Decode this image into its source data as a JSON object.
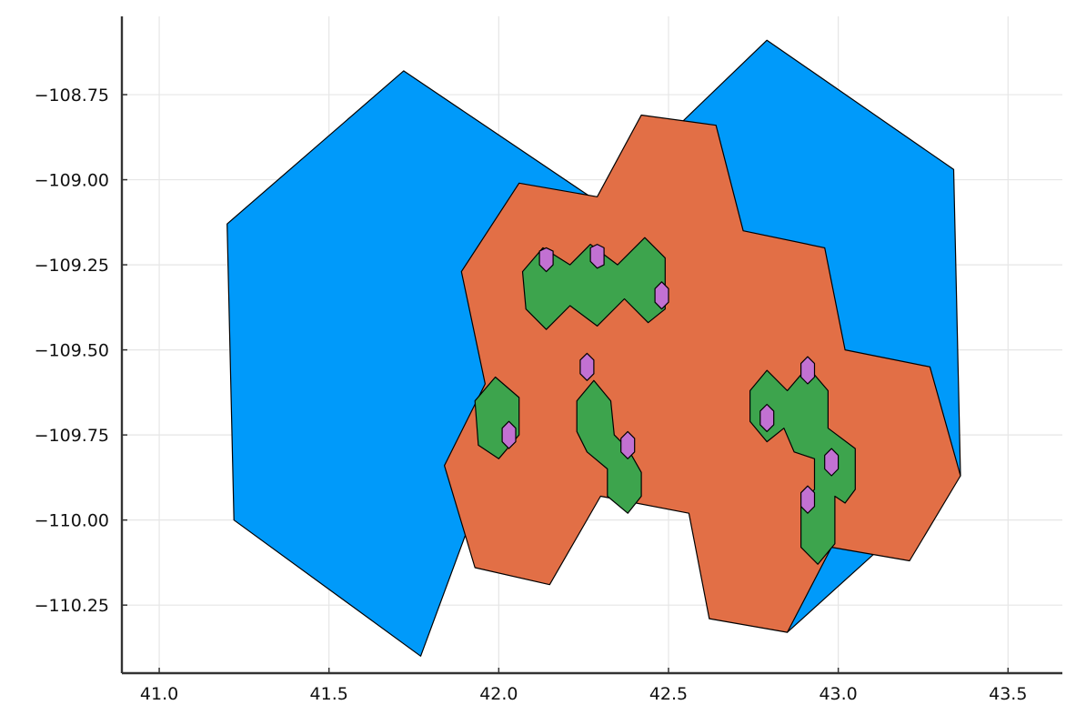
{
  "chart_data": {
    "type": "polygon-map",
    "title": "",
    "xlabel": "",
    "ylabel": "",
    "xlim": [
      40.89,
      43.66
    ],
    "ylim": [
      -110.45,
      -108.52
    ],
    "xticks": [
      41.0,
      41.5,
      42.0,
      42.5,
      43.0,
      43.5
    ],
    "xtick_labels": [
      "41.0",
      "41.5",
      "42.0",
      "42.5",
      "43.0",
      "43.5"
    ],
    "yticks": [
      -108.75,
      -109.0,
      -109.25,
      -109.5,
      -109.75,
      -110.0,
      -110.25
    ],
    "ytick_labels": [
      "−108.75",
      "−109.00",
      "−109.25",
      "−109.50",
      "−109.75",
      "−110.00",
      "−110.25"
    ],
    "grid": true,
    "legend": "none",
    "series": [
      {
        "color": "#009AFA",
        "polygons": [
          [
            [
              41.72,
              -108.68
            ],
            [
              42.27,
              -109.05
            ],
            [
              41.77,
              -110.4
            ],
            [
              41.22,
              -110.0
            ],
            [
              41.2,
              -109.13
            ]
          ],
          [
            [
              42.54,
              -108.83
            ],
            [
              42.79,
              -108.59
            ],
            [
              43.34,
              -108.97
            ],
            [
              43.36,
              -109.87
            ],
            [
              42.85,
              -110.33
            ],
            [
              42.58,
              -109.98
            ],
            [
              42.3,
              -109.91
            ]
          ]
        ]
      },
      {
        "color": "#E26F46",
        "polygons": [
          [
            [
              42.42,
              -108.81
            ],
            [
              42.64,
              -108.84
            ],
            [
              42.72,
              -109.15
            ],
            [
              42.96,
              -109.2
            ],
            [
              43.02,
              -109.5
            ],
            [
              43.27,
              -109.55
            ],
            [
              43.36,
              -109.87
            ],
            [
              43.21,
              -110.12
            ],
            [
              42.98,
              -110.08
            ],
            [
              42.85,
              -110.33
            ],
            [
              42.62,
              -110.29
            ],
            [
              42.56,
              -109.98
            ],
            [
              42.3,
              -109.93
            ],
            [
              42.15,
              -110.19
            ],
            [
              41.93,
              -110.14
            ],
            [
              41.84,
              -109.84
            ],
            [
              41.96,
              -109.6
            ],
            [
              41.89,
              -109.27
            ],
            [
              42.06,
              -109.01
            ],
            [
              42.29,
              -109.05
            ]
          ]
        ]
      },
      {
        "color": "#3DA44D",
        "polygons": [
          [
            [
              42.07,
              -109.27
            ],
            [
              42.13,
              -109.2
            ],
            [
              42.21,
              -109.25
            ],
            [
              42.27,
              -109.19
            ],
            [
              42.35,
              -109.25
            ],
            [
              42.43,
              -109.17
            ],
            [
              42.49,
              -109.23
            ],
            [
              42.49,
              -109.38
            ],
            [
              42.44,
              -109.42
            ],
            [
              42.37,
              -109.35
            ],
            [
              42.29,
              -109.43
            ],
            [
              42.21,
              -109.37
            ],
            [
              42.14,
              -109.44
            ],
            [
              42.08,
              -109.38
            ]
          ],
          [
            [
              41.93,
              -109.65
            ],
            [
              41.99,
              -109.58
            ],
            [
              42.06,
              -109.64
            ],
            [
              42.06,
              -109.75
            ],
            [
              42.0,
              -109.82
            ],
            [
              41.94,
              -109.78
            ]
          ],
          [
            [
              42.23,
              -109.65
            ],
            [
              42.28,
              -109.59
            ],
            [
              42.33,
              -109.65
            ],
            [
              42.34,
              -109.75
            ],
            [
              42.38,
              -109.79
            ],
            [
              42.42,
              -109.86
            ],
            [
              42.42,
              -109.93
            ],
            [
              42.38,
              -109.98
            ],
            [
              42.32,
              -109.93
            ],
            [
              42.32,
              -109.85
            ],
            [
              42.26,
              -109.8
            ],
            [
              42.23,
              -109.74
            ]
          ],
          [
            [
              42.74,
              -109.62
            ],
            [
              42.79,
              -109.56
            ],
            [
              42.85,
              -109.62
            ],
            [
              42.91,
              -109.55
            ],
            [
              42.97,
              -109.62
            ],
            [
              42.97,
              -109.73
            ],
            [
              43.05,
              -109.79
            ],
            [
              43.05,
              -109.91
            ],
            [
              43.02,
              -109.95
            ],
            [
              42.99,
              -109.93
            ],
            [
              42.99,
              -110.07
            ],
            [
              42.94,
              -110.13
            ],
            [
              42.89,
              -110.08
            ],
            [
              42.89,
              -109.95
            ],
            [
              42.93,
              -109.91
            ],
            [
              42.93,
              -109.82
            ],
            [
              42.87,
              -109.8
            ],
            [
              42.84,
              -109.73
            ],
            [
              42.79,
              -109.77
            ],
            [
              42.74,
              -109.71
            ]
          ]
        ]
      },
      {
        "color": "#C271D2",
        "polygons": [
          [
            [
              42.12,
              -109.21
            ],
            [
              42.14,
              -109.2
            ],
            [
              42.16,
              -109.21
            ],
            [
              42.16,
              -109.25
            ],
            [
              42.14,
              -109.27
            ],
            [
              42.12,
              -109.25
            ]
          ],
          [
            [
              42.27,
              -109.2
            ],
            [
              42.29,
              -109.19
            ],
            [
              42.31,
              -109.2
            ],
            [
              42.31,
              -109.25
            ],
            [
              42.29,
              -109.26
            ],
            [
              42.27,
              -109.24
            ]
          ],
          [
            [
              42.46,
              -109.32
            ],
            [
              42.48,
              -109.3
            ],
            [
              42.5,
              -109.32
            ],
            [
              42.5,
              -109.36
            ],
            [
              42.48,
              -109.38
            ],
            [
              42.46,
              -109.36
            ]
          ],
          [
            [
              42.24,
              -109.53
            ],
            [
              42.26,
              -109.51
            ],
            [
              42.28,
              -109.53
            ],
            [
              42.28,
              -109.57
            ],
            [
              42.26,
              -109.59
            ],
            [
              42.24,
              -109.57
            ]
          ],
          [
            [
              42.01,
              -109.73
            ],
            [
              42.03,
              -109.71
            ],
            [
              42.05,
              -109.73
            ],
            [
              42.05,
              -109.77
            ],
            [
              42.03,
              -109.79
            ],
            [
              42.01,
              -109.77
            ]
          ],
          [
            [
              42.36,
              -109.76
            ],
            [
              42.38,
              -109.74
            ],
            [
              42.4,
              -109.76
            ],
            [
              42.4,
              -109.8
            ],
            [
              42.38,
              -109.82
            ],
            [
              42.36,
              -109.8
            ]
          ],
          [
            [
              42.89,
              -109.54
            ],
            [
              42.91,
              -109.52
            ],
            [
              42.93,
              -109.54
            ],
            [
              42.93,
              -109.58
            ],
            [
              42.91,
              -109.6
            ],
            [
              42.89,
              -109.58
            ]
          ],
          [
            [
              42.77,
              -109.68
            ],
            [
              42.79,
              -109.66
            ],
            [
              42.81,
              -109.68
            ],
            [
              42.81,
              -109.72
            ],
            [
              42.79,
              -109.74
            ],
            [
              42.77,
              -109.72
            ]
          ],
          [
            [
              42.96,
              -109.81
            ],
            [
              42.98,
              -109.79
            ],
            [
              43.0,
              -109.81
            ],
            [
              43.0,
              -109.85
            ],
            [
              42.98,
              -109.87
            ],
            [
              42.96,
              -109.85
            ]
          ],
          [
            [
              42.89,
              -109.92
            ],
            [
              42.91,
              -109.9
            ],
            [
              42.93,
              -109.92
            ],
            [
              42.93,
              -109.96
            ],
            [
              42.91,
              -109.98
            ],
            [
              42.89,
              -109.96
            ]
          ]
        ]
      }
    ]
  }
}
